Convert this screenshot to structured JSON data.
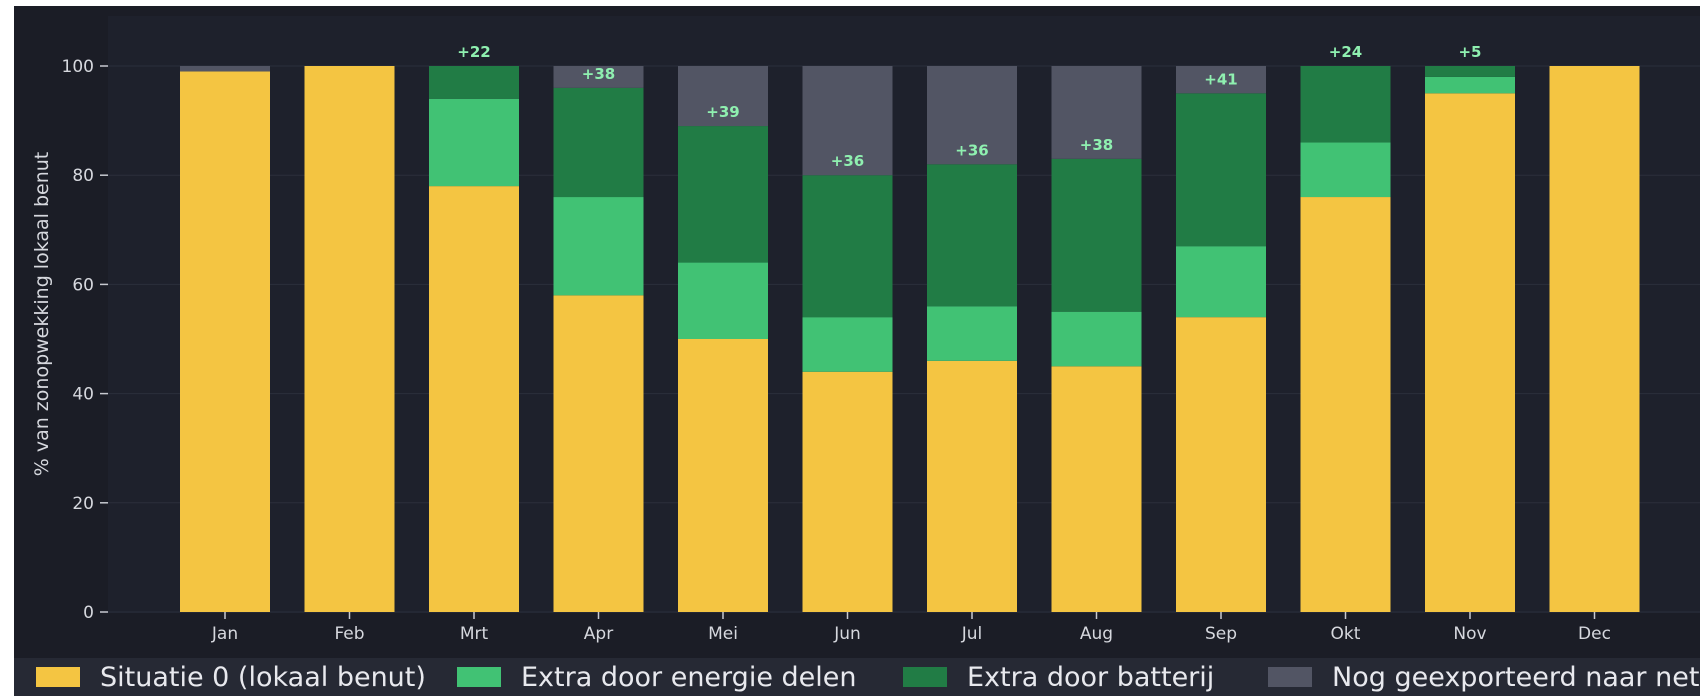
{
  "chart_data": {
    "type": "bar",
    "stacked": true,
    "categories": [
      "Jan",
      "Feb",
      "Mrt",
      "Apr",
      "Mei",
      "Jun",
      "Jul",
      "Aug",
      "Sep",
      "Okt",
      "Nov",
      "Dec"
    ],
    "series": [
      {
        "name": "Situatie 0 (lokaal benut)",
        "color": "#f4c542",
        "values": [
          99,
          100,
          78,
          58,
          50,
          44,
          46,
          45,
          54,
          76,
          95,
          100
        ]
      },
      {
        "name": "Extra door energie delen",
        "color": "#41c274",
        "values": [
          0,
          0,
          16,
          18,
          14,
          10,
          10,
          10,
          13,
          10,
          3,
          0
        ]
      },
      {
        "name": "Extra door batterij",
        "color": "#217c45",
        "values": [
          0,
          0,
          6,
          20,
          25,
          26,
          26,
          28,
          28,
          14,
          2,
          0
        ]
      },
      {
        "name": "Nog geexporteerd naar net",
        "color": "#525564",
        "values": [
          1,
          0,
          0,
          4,
          11,
          20,
          18,
          17,
          5,
          0,
          0,
          0
        ]
      }
    ],
    "bar_labels": [
      "",
      "",
      "+22",
      "+38",
      "+39",
      "+36",
      "+36",
      "+38",
      "+41",
      "+24",
      "+5",
      ""
    ],
    "ylabel": "% van zonopwekking lokaal benut",
    "xlabel": "",
    "ylim": [
      0,
      110
    ],
    "yticks": [
      0,
      20,
      40,
      60,
      80,
      100
    ],
    "grid": true,
    "legend_position": "bottom"
  }
}
